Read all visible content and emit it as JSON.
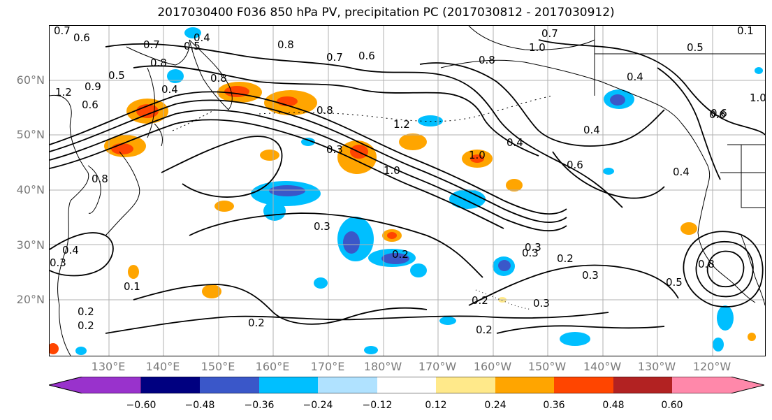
{
  "title": "2017030400 F036 850 hPa PV, precipitation PC (2017030812 - 2017030912)",
  "lat_labels": [
    "60°N",
    "50°N",
    "40°N",
    "30°N",
    "20°N"
  ],
  "lon_labels": [
    "130°E",
    "140°E",
    "150°E",
    "160°E",
    "170°E",
    "180°W",
    "170°W",
    "160°W",
    "150°W",
    "140°W",
    "130°W",
    "120°W"
  ],
  "contour_labels": [
    "0.7",
    "0.6",
    "0.4",
    "0.5",
    "0.7",
    "0.8",
    "0.7",
    "0.6",
    "0.8",
    "0.7",
    "1.0",
    "0.8",
    "0.5",
    "0.6",
    "0.8",
    "0.5",
    "0.4",
    "1.2",
    "0.8",
    "0.9",
    "0.8",
    "0.3",
    "1.0",
    "1.2",
    "1.0",
    "0.4",
    "0.4",
    "0.6",
    "0.4",
    "0.6",
    "0.4",
    "0.3",
    "0.2",
    "0.3",
    "0.2",
    "0.3",
    "0.2",
    "0.2",
    "0.3",
    "0.2",
    "0.3",
    "0.4",
    "0.3",
    "0.1",
    "0.2",
    "0.2",
    "0.8",
    "0.5",
    "0.6",
    "0.1",
    "1.0"
  ],
  "colorbar": {
    "ticks": [
      "−0.60",
      "−0.48",
      "−0.36",
      "−0.24",
      "−0.12",
      "0.12",
      "0.24",
      "0.36",
      "0.48",
      "0.60"
    ],
    "colors": [
      "#9932cc",
      "#000080",
      "#3a57c9",
      "#00bfff",
      "#b0e2ff",
      "#ffffff",
      "#ffe98a",
      "#ffa500",
      "#ff4500",
      "#b22222",
      "#ff88aa"
    ]
  },
  "colors": {
    "contour": "#000000",
    "grid": "#b0b0b0",
    "coast": "#000000",
    "tick_label": "#7a7a7a"
  }
}
